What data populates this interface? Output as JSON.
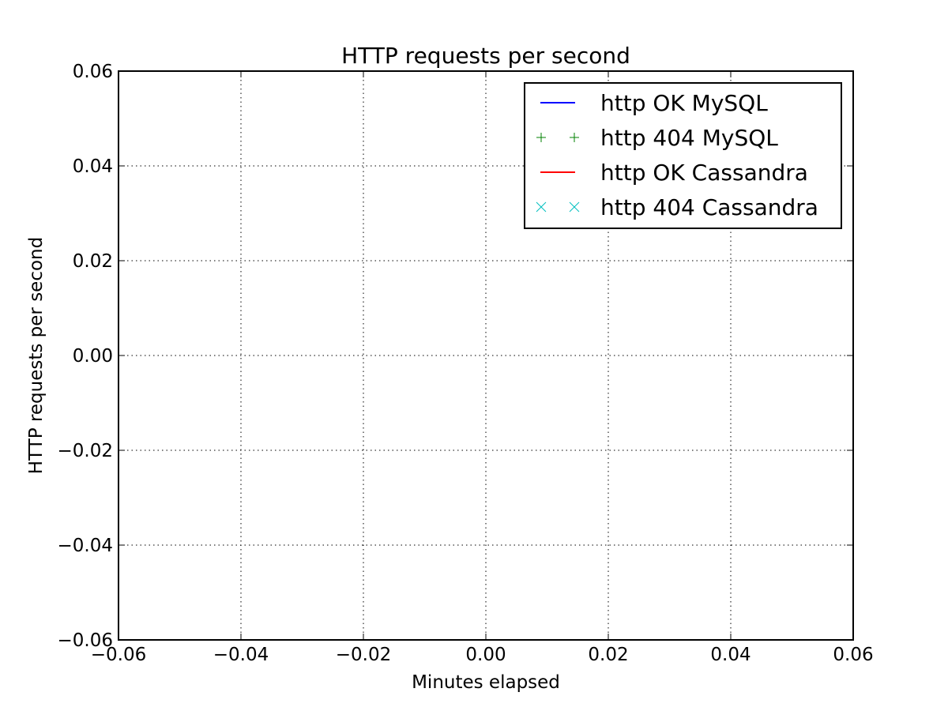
{
  "chart_data": {
    "type": "line",
    "title": "HTTP requests per second",
    "xlabel": "Minutes elapsed",
    "ylabel": "HTTP requests per second",
    "xlim": [
      -0.06,
      0.06
    ],
    "ylim": [
      -0.06,
      0.06
    ],
    "xticks": [
      -0.06,
      -0.04,
      -0.02,
      0.0,
      0.02,
      0.04,
      0.06
    ],
    "yticks": [
      -0.06,
      -0.04,
      -0.02,
      0.0,
      0.02,
      0.04,
      0.06
    ],
    "xtick_labels": [
      "−0.06",
      "−0.04",
      "−0.02",
      "0.00",
      "0.02",
      "0.04",
      "0.06"
    ],
    "ytick_labels": [
      "−0.06",
      "−0.04",
      "−0.02",
      "0.00",
      "0.02",
      "0.04",
      "0.06"
    ],
    "grid": true,
    "legend_position": "top-right",
    "series": [
      {
        "name": "http OK MySQL",
        "style": "line",
        "color": "#0000ff",
        "x": [],
        "y": []
      },
      {
        "name": "http 404 MySQL",
        "style": "plus-markers",
        "color": "#008000",
        "x": [],
        "y": []
      },
      {
        "name": "http OK Cassandra",
        "style": "line",
        "color": "#ff0000",
        "x": [],
        "y": []
      },
      {
        "name": "http 404 Cassandra",
        "style": "x-markers",
        "color": "#00bfbf",
        "x": [],
        "y": []
      }
    ]
  }
}
